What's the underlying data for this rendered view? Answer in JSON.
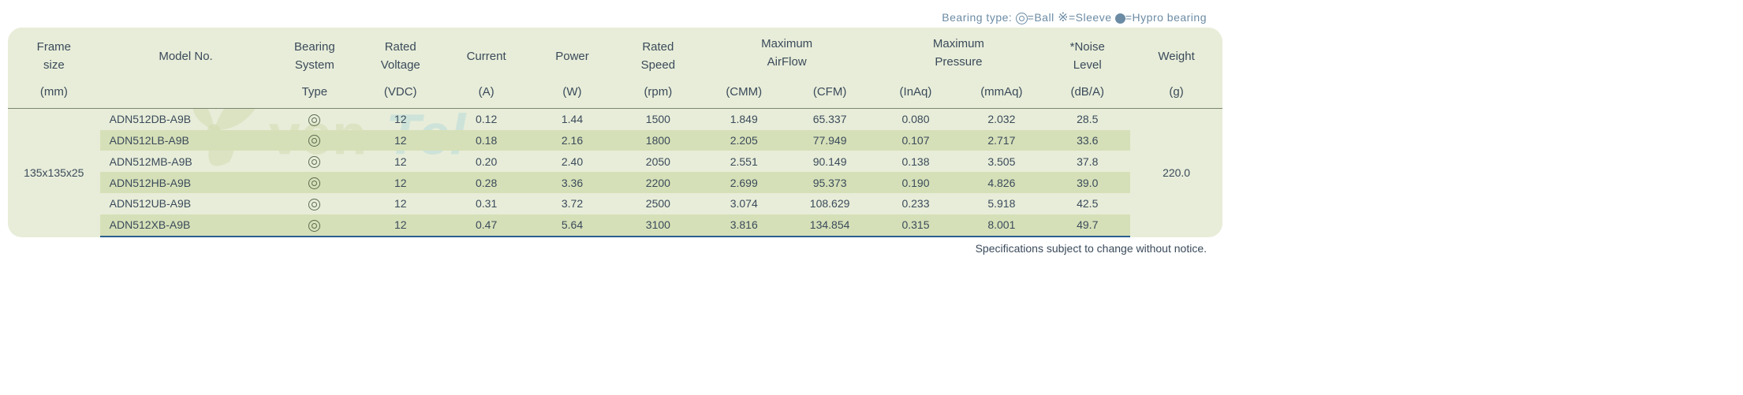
{
  "legend": {
    "prefix": "Bearing type:  ",
    "ball": "=Ball",
    "sleeve": "=Sleeve",
    "hypro": "=Hypro bearing"
  },
  "headers": {
    "frame": {
      "l1": "Frame",
      "l2": "size",
      "l3": "(mm)"
    },
    "model": {
      "l2": "Model No."
    },
    "bearing": {
      "l1": "Bearing",
      "l2": "System",
      "l3": "Type"
    },
    "voltage": {
      "l1": "Rated",
      "l2": "Voltage",
      "l3": "(VDC)"
    },
    "current": {
      "l2": "Current",
      "l3": "(A)"
    },
    "power": {
      "l2": "Power",
      "l3": "(W)"
    },
    "speed": {
      "l1": "Rated",
      "l2": "Speed",
      "l3": "(rpm)"
    },
    "airflow": {
      "l1": "Maximum",
      "l2": "AirFlow",
      "cmm": "(CMM)",
      "cfm": "(CFM)"
    },
    "pressure": {
      "l1": "Maximum",
      "l2": "Pressure",
      "inaq": "(InAq)",
      "mmaq": "(mmAq)"
    },
    "noise": {
      "l1": "*Noise",
      "l2": "Level",
      "l3": "(dB/A)"
    },
    "weight": {
      "l2": "Weight",
      "l3": "(g)"
    }
  },
  "frame_size": "135x135x25",
  "weight": "220.0",
  "rows": [
    {
      "model": "ADN512DB-A9B",
      "voltage": "12",
      "current": "0.12",
      "power": "1.44",
      "speed": "1500",
      "cmm": "1.849",
      "cfm": "65.337",
      "inaq": "0.080",
      "mmaq": "2.032",
      "noise": "28.5"
    },
    {
      "model": "ADN512LB-A9B",
      "voltage": "12",
      "current": "0.18",
      "power": "2.16",
      "speed": "1800",
      "cmm": "2.205",
      "cfm": "77.949",
      "inaq": "0.107",
      "mmaq": "2.717",
      "noise": "33.6"
    },
    {
      "model": "ADN512MB-A9B",
      "voltage": "12",
      "current": "0.20",
      "power": "2.40",
      "speed": "2050",
      "cmm": "2.551",
      "cfm": "90.149",
      "inaq": "0.138",
      "mmaq": "3.505",
      "noise": "37.8"
    },
    {
      "model": "ADN512HB-A9B",
      "voltage": "12",
      "current": "0.28",
      "power": "3.36",
      "speed": "2200",
      "cmm": "2.699",
      "cfm": "95.373",
      "inaq": "0.190",
      "mmaq": "4.826",
      "noise": "39.0"
    },
    {
      "model": "ADN512UB-A9B",
      "voltage": "12",
      "current": "0.31",
      "power": "3.72",
      "speed": "2500",
      "cmm": "3.074",
      "cfm": "108.629",
      "inaq": "0.233",
      "mmaq": "5.918",
      "noise": "42.5"
    },
    {
      "model": "ADN512XB-A9B",
      "voltage": "12",
      "current": "0.47",
      "power": "5.64",
      "speed": "3100",
      "cmm": "3.816",
      "cfm": "134.854",
      "inaq": "0.315",
      "mmaq": "8.001",
      "noise": "49.7"
    }
  ],
  "footnote": "Specifications subject to change without notice.",
  "colors": {
    "header_bg": "#e8edd9",
    "stripe_bg": "#d6e0b8",
    "text": "#3a4a5a",
    "legend_text": "#6b8ba4",
    "bottom_border": "#2b5f8e"
  },
  "column_widths_pct": [
    7.5,
    14,
    7,
    7,
    7,
    7,
    7,
    7,
    7,
    7,
    7,
    7,
    7.5
  ],
  "watermark": {
    "text1": "ven",
    "text2": "Tel",
    "color1": "#9bb04f",
    "color2": "#5fb8d9"
  }
}
